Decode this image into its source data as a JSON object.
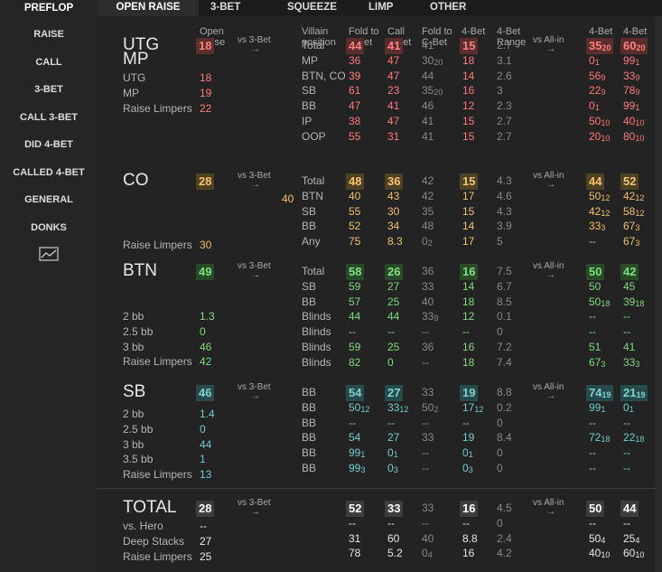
{
  "sidebar": {
    "head": "PREFLOP",
    "items": [
      "RAISE",
      "CALL",
      "3-BET",
      "CALL 3-BET",
      "DID 4-BET",
      "CALLED 4-BET",
      "GENERAL",
      "DONKS"
    ]
  },
  "tabs": [
    "OPEN RAISE",
    "3-BET",
    "SQUEEZE",
    "LIMP",
    "OTHER"
  ],
  "headers": {
    "open_raise": [
      "Open",
      "Raise"
    ],
    "villain_pos": [
      "Villain",
      "position"
    ],
    "fold_to_3bet": [
      "Fold to",
      "3-Bet"
    ],
    "call_3bet": [
      "Call",
      "3-Bet"
    ],
    "fold_to_cbet": [
      "Fold to",
      "C-Bet"
    ],
    "four_bet": "4-Bet",
    "four_bet_range": [
      "4-Bet",
      "Range"
    ],
    "four_bet_fold": [
      "4-Bet",
      "Fold"
    ],
    "four_bet_call": [
      "4-Bet",
      "Call"
    ]
  },
  "vs3bet": "vs 3-Bet",
  "vsallin": "vs All-in",
  "arrow": "→",
  "extra_40": "40",
  "colors": {
    "red": "#ff7a7a",
    "yellow": "#f3c169",
    "green": "#7edc7e",
    "teal": "#74cccc",
    "white": "#e8e8e8"
  },
  "sections": [
    {
      "id": "utg",
      "color": "red",
      "titles": [
        "UTG",
        "MP"
      ],
      "open": "18",
      "left": [
        [
          "UTG",
          "18"
        ],
        [
          "MP",
          "19"
        ],
        [
          "Raise Limpers",
          "22"
        ]
      ],
      "rows": [
        [
          "Total",
          "44",
          "41",
          "41",
          "15",
          "2.7",
          "35|20",
          "60|20"
        ],
        [
          "MP",
          "36",
          "47",
          "30|20",
          "18",
          "3.1",
          "0|1",
          "99|1"
        ],
        [
          "BTN, CO",
          "39",
          "47",
          "44",
          "14",
          "2.6",
          "56|9",
          "33|9"
        ],
        [
          "SB",
          "61",
          "23",
          "35|20",
          "16",
          "3",
          "22|9",
          "78|9"
        ],
        [
          "BB",
          "47",
          "41",
          "46",
          "12",
          "2.3",
          "0|1",
          "99|1"
        ],
        [
          "IP",
          "38",
          "47",
          "41",
          "15",
          "2.7",
          "50|10",
          "40|10"
        ],
        [
          "OOP",
          "55",
          "31",
          "41",
          "15",
          "2.7",
          "20|10",
          "80|10"
        ]
      ]
    },
    {
      "id": "co",
      "color": "yellow",
      "titles": [
        "CO"
      ],
      "open": "28",
      "left": [
        [
          "Raise Limpers",
          "30"
        ]
      ],
      "rows": [
        [
          "Total",
          "48",
          "36",
          "42",
          "15",
          "4.3",
          "44",
          "52"
        ],
        [
          "BTN",
          "40",
          "43",
          "42",
          "17",
          "4.6",
          "50|12",
          "42|12"
        ],
        [
          "SB",
          "55",
          "30",
          "35",
          "15",
          "4.3",
          "42|12",
          "58|12"
        ],
        [
          "BB",
          "52",
          "34",
          "48",
          "14",
          "3.9",
          "33|3",
          "67|3"
        ],
        [
          "Any",
          "75",
          "8.3",
          "0|2",
          "17",
          "5",
          "--",
          "67|3"
        ]
      ]
    },
    {
      "id": "btn",
      "color": "green",
      "titles": [
        "BTN"
      ],
      "open": "49",
      "left": [
        [
          "2 bb",
          "1.3"
        ],
        [
          "2.5 bb",
          "0"
        ],
        [
          "3 bb",
          "46"
        ],
        [
          "Raise Limpers",
          "42"
        ]
      ],
      "rows": [
        [
          "Total",
          "58",
          "26",
          "36",
          "16",
          "7.5",
          "50",
          "42"
        ],
        [
          "SB",
          "59",
          "27",
          "33",
          "14",
          "6.7",
          "50",
          "45"
        ],
        [
          "BB",
          "57",
          "25",
          "40",
          "18",
          "8.5",
          "50|18",
          "39|18"
        ],
        [
          "Blinds",
          "44",
          "44",
          "33|9",
          "12",
          "0.1",
          "--",
          "--"
        ],
        [
          "Blinds",
          "--",
          "--",
          "--",
          "--",
          "0",
          "--",
          "--"
        ],
        [
          "Blinds",
          "59",
          "25",
          "36",
          "16",
          "7.2",
          "51",
          "41"
        ],
        [
          "Blinds",
          "82",
          "0",
          "--",
          "18",
          "7.4",
          "67|3",
          "33|3"
        ]
      ]
    },
    {
      "id": "sb",
      "color": "teal",
      "titles": [
        "SB"
      ],
      "open": "46",
      "left": [
        [
          "2 bb",
          "1.4"
        ],
        [
          "2.5 bb",
          "0"
        ],
        [
          "3 bb",
          "44"
        ],
        [
          "3.5 bb",
          "1"
        ],
        [
          "Raise Limpers",
          "13"
        ]
      ],
      "rows": [
        [
          "BB",
          "54",
          "27",
          "33",
          "19",
          "8.8",
          "74|19",
          "21|19"
        ],
        [
          "BB",
          "50|12",
          "33|12",
          "50|2",
          "17|12",
          "0.2",
          "99|1",
          "0|1"
        ],
        [
          "BB",
          "--",
          "--",
          "--",
          "--",
          "0",
          "--",
          "--"
        ],
        [
          "BB",
          "54",
          "27",
          "33",
          "19",
          "8.4",
          "72|18",
          "22|18"
        ],
        [
          "BB",
          "99|1",
          "0|1",
          "--",
          "0|1",
          "0",
          "--",
          "--"
        ],
        [
          "BB",
          "99|3",
          "0|3",
          "--",
          "0|3",
          "0",
          "--",
          "--"
        ]
      ]
    },
    {
      "id": "total",
      "color": "white",
      "titles": [
        "TOTAL"
      ],
      "open": "28",
      "left": [
        [
          "vs. Hero",
          "--"
        ],
        [
          "Deep Stacks",
          "27"
        ],
        [
          "Raise Limpers",
          "25"
        ]
      ],
      "rows": [
        [
          "",
          "52",
          "33",
          "33",
          "16",
          "4.5",
          "50",
          "44"
        ],
        [
          "",
          "--",
          "--",
          "--",
          "--",
          "0",
          "--",
          "--"
        ],
        [
          "",
          "31",
          "60",
          "40",
          "8.8",
          "2.4",
          "50|4",
          "25|4"
        ],
        [
          "",
          "78",
          "5.2",
          "0|4",
          "16",
          "4.2",
          "40|10",
          "60|10"
        ]
      ]
    }
  ]
}
